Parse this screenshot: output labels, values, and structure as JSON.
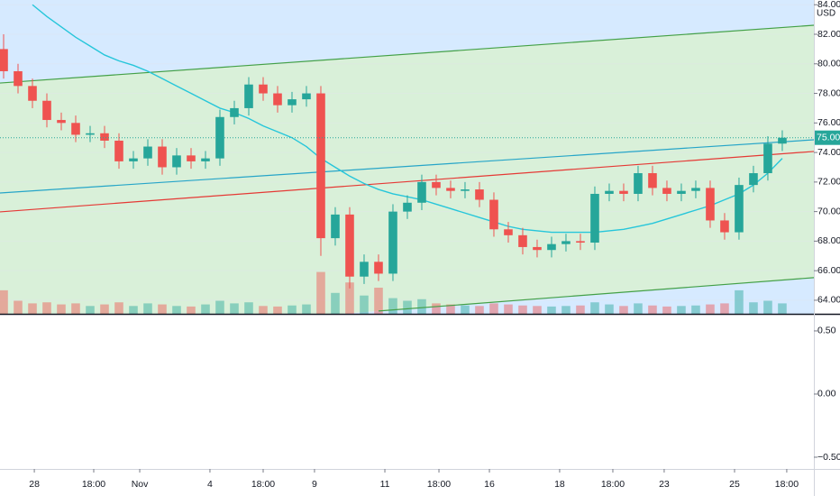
{
  "chart_data": {
    "type": "candlestick",
    "currency": "USD",
    "xlim": [
      -0.25,
      56.19
    ],
    "ylim": [
      63.08,
      84.32
    ],
    "yticks": [
      {
        "value": 64,
        "label": "64.00"
      },
      {
        "value": 66,
        "label": "66.00"
      },
      {
        "value": 68,
        "label": "68.00"
      },
      {
        "value": 70,
        "label": "70.00"
      },
      {
        "value": 72,
        "label": "72.00"
      },
      {
        "value": 74,
        "label": "74.00"
      },
      {
        "value": 76,
        "label": "76.00"
      },
      {
        "value": 78,
        "label": "78.00"
      },
      {
        "value": 80,
        "label": "80.00"
      },
      {
        "value": 82,
        "label": "82.00"
      },
      {
        "value": 84,
        "label": "84.00"
      }
    ],
    "xticks": [
      {
        "value": 2.13,
        "label": "28"
      },
      {
        "value": 6.25,
        "label": "18:00"
      },
      {
        "value": 9.44,
        "label": "Nov"
      },
      {
        "value": 14.31,
        "label": "4"
      },
      {
        "value": 18,
        "label": "18:00"
      },
      {
        "value": 21.56,
        "label": "9"
      },
      {
        "value": 26.44,
        "label": "11"
      },
      {
        "value": 30.19,
        "label": "18:00"
      },
      {
        "value": 33.69,
        "label": "16"
      },
      {
        "value": 38.56,
        "label": "18"
      },
      {
        "value": 42.25,
        "label": "18:00"
      },
      {
        "value": 45.81,
        "label": "23"
      },
      {
        "value": 50.69,
        "label": "25"
      },
      {
        "value": 54.31,
        "label": "18:00"
      }
    ],
    "up_color": "#26a69a",
    "down_color": "#ef5350",
    "open": [
      81.0,
      79.5,
      78.5,
      77.5,
      76.2,
      76.0,
      75.2,
      75.3,
      74.8,
      73.4,
      73.6,
      74.4,
      73.0,
      73.8,
      73.4,
      73.6,
      76.4,
      77.0,
      78.6,
      78.0,
      77.2,
      77.6,
      78.0,
      68.2,
      69.8,
      65.6,
      66.6,
      65.8,
      70.0,
      70.6,
      72.0,
      71.6,
      71.4,
      71.5,
      70.8,
      68.8,
      68.4,
      67.6,
      67.4,
      67.8,
      68.0,
      67.9,
      71.2,
      71.4,
      71.2,
      72.6,
      71.6,
      71.2,
      71.4,
      71.6,
      69.4,
      68.6,
      71.8,
      72.6,
      74.6
    ],
    "high": [
      82.0,
      80.0,
      79.0,
      78.0,
      76.7,
      76.5,
      75.8,
      75.8,
      75.3,
      74.1,
      74.9,
      74.9,
      74.3,
      74.3,
      74.1,
      76.9,
      77.5,
      79.1,
      79.1,
      78.5,
      78.1,
      78.5,
      78.5,
      70.3,
      70.3,
      67.1,
      67.1,
      70.5,
      71.1,
      72.5,
      72.5,
      72.1,
      72.0,
      72.0,
      71.3,
      69.3,
      68.9,
      68.1,
      68.3,
      68.5,
      68.5,
      71.7,
      71.9,
      71.9,
      73.1,
      73.1,
      72.1,
      71.9,
      72.1,
      72.1,
      69.9,
      72.3,
      73.1,
      75.1,
      75.5
    ],
    "low": [
      79.0,
      78.0,
      77.0,
      75.7,
      75.5,
      74.7,
      74.7,
      74.3,
      72.9,
      72.9,
      73.1,
      72.5,
      72.5,
      72.9,
      72.9,
      73.1,
      75.9,
      76.5,
      77.5,
      76.7,
      76.7,
      77.1,
      67.0,
      67.7,
      64.8,
      65.1,
      65.3,
      65.3,
      69.5,
      70.1,
      71.1,
      70.9,
      70.9,
      70.3,
      68.3,
      67.9,
      67.1,
      66.9,
      66.9,
      67.3,
      67.4,
      67.4,
      70.7,
      70.7,
      70.7,
      71.1,
      70.7,
      70.7,
      70.9,
      68.9,
      68.1,
      68.1,
      71.3,
      72.1,
      74.1
    ],
    "close": [
      79.5,
      78.5,
      77.5,
      76.2,
      76.0,
      75.2,
      75.3,
      74.8,
      73.4,
      73.6,
      74.4,
      73.0,
      73.8,
      73.4,
      73.6,
      76.4,
      77.0,
      78.6,
      78.0,
      77.2,
      77.6,
      78.0,
      68.2,
      69.8,
      65.6,
      66.6,
      65.8,
      70.0,
      70.6,
      72.0,
      71.6,
      71.4,
      71.5,
      70.8,
      68.8,
      68.4,
      67.6,
      67.4,
      67.8,
      68.0,
      67.9,
      71.2,
      71.4,
      71.2,
      72.6,
      71.6,
      71.2,
      71.4,
      71.6,
      69.4,
      68.6,
      71.8,
      72.6,
      74.6,
      75.0
    ],
    "volume": [
      45,
      25,
      20,
      22,
      18,
      20,
      15,
      18,
      22,
      15,
      20,
      18,
      15,
      14,
      18,
      25,
      20,
      22,
      15,
      14,
      16,
      18,
      80,
      40,
      60,
      35,
      50,
      30,
      25,
      28,
      20,
      18,
      16,
      15,
      20,
      18,
      16,
      15,
      14,
      15,
      16,
      22,
      18,
      15,
      20,
      16,
      14,
      15,
      16,
      18,
      20,
      45,
      22,
      25,
      20
    ],
    "volume_ylim": [
      0,
      600
    ],
    "moving_average": {
      "color": "#26c6da",
      "values": [
        null,
        null,
        84.0,
        83.2,
        82.5,
        81.8,
        81.2,
        80.6,
        80.2,
        79.9,
        79.5,
        79.0,
        78.5,
        78.0,
        77.5,
        77.0,
        76.7,
        76.3,
        75.8,
        75.4,
        75.0,
        74.4,
        73.6,
        73.0,
        72.4,
        71.9,
        71.5,
        71.2,
        71.0,
        70.8,
        70.5,
        70.2,
        69.9,
        69.6,
        69.3,
        69.0,
        68.8,
        68.7,
        68.6,
        68.6,
        68.6,
        68.6,
        68.7,
        68.8,
        69.0,
        69.2,
        69.5,
        69.8,
        70.1,
        70.4,
        70.8,
        71.2,
        71.8,
        72.6,
        73.6
      ]
    },
    "lines": [
      {
        "color": "#43a047",
        "x": [
          -0.25,
          56.19
        ],
        "values": [
          78.7,
          82.61
        ]
      },
      {
        "color": "#43a047",
        "x": [
          26,
          56.19
        ],
        "values": [
          63.27,
          65.53
        ]
      },
      {
        "color": "#26a5c8",
        "x": [
          -0.25,
          56.19
        ],
        "values": [
          71.26,
          74.86
        ]
      },
      {
        "color": "#e53935",
        "x": [
          -0.25,
          56.19
        ],
        "values": [
          69.98,
          74.07
        ]
      }
    ],
    "price_line": {
      "value": 75,
      "label": "75.00",
      "color": "#26a69a"
    },
    "lower_pane": {
      "ylim": [
        -0.593,
        0.621
      ],
      "yticks": [
        {
          "value": 0.5,
          "label": "0.50"
        },
        {
          "value": 0,
          "label": "0.00"
        },
        {
          "value": -0.5,
          "label": "−0.50"
        }
      ]
    }
  }
}
